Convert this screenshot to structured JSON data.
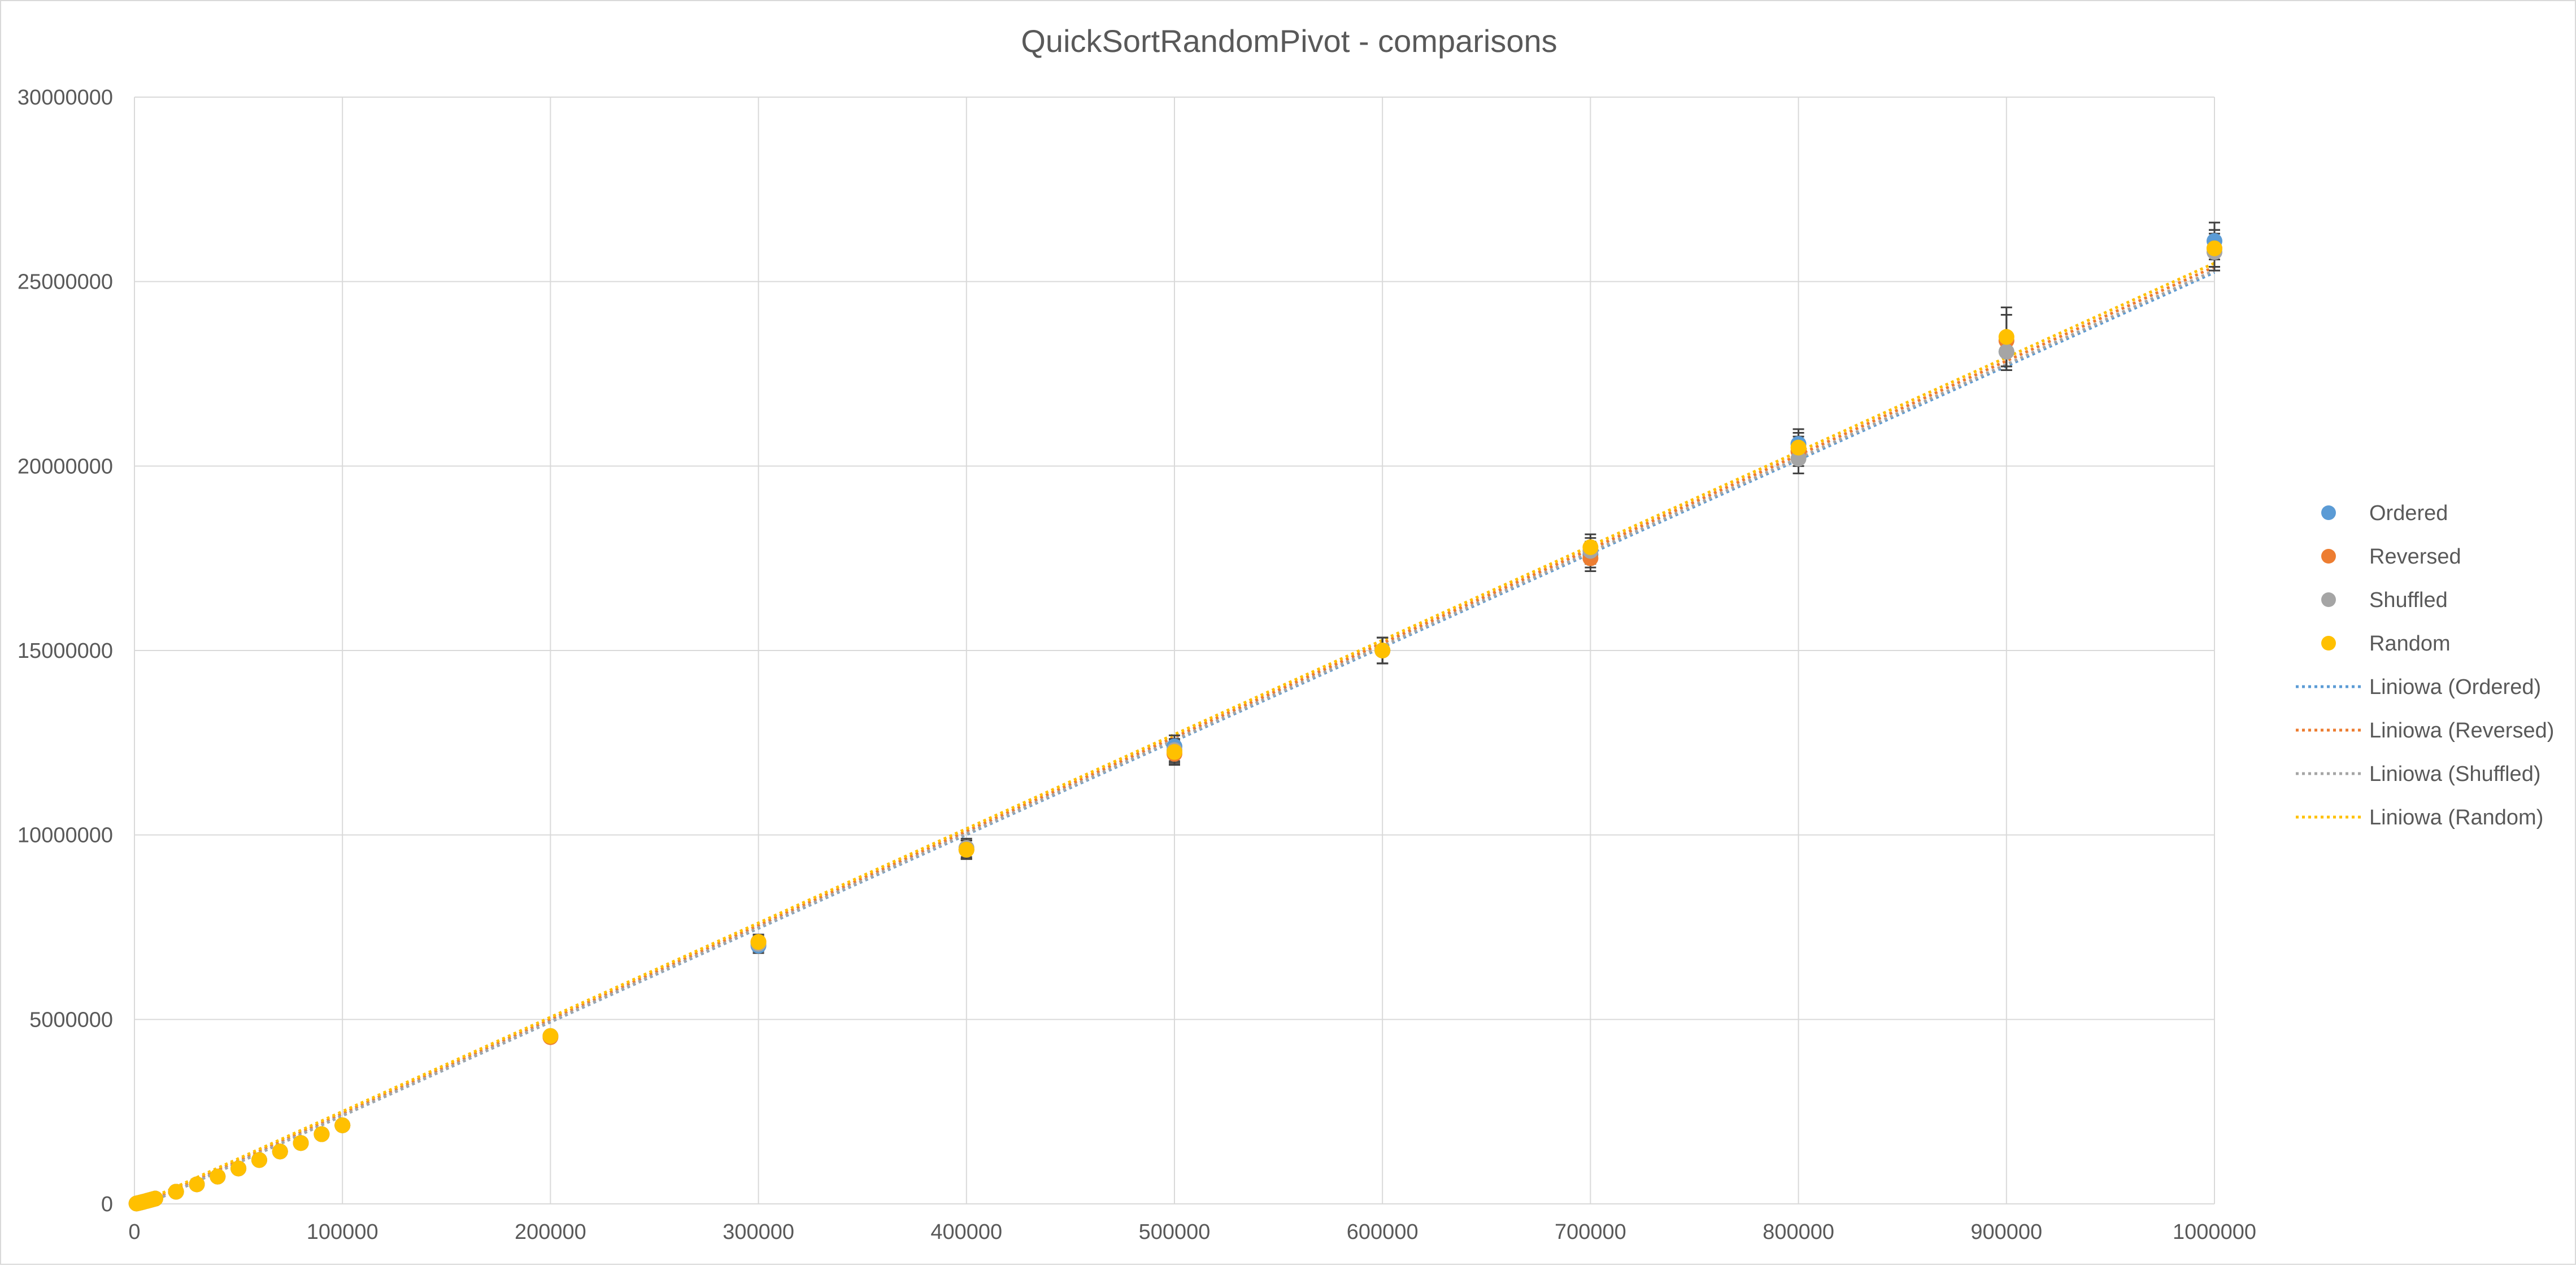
{
  "chart_data": {
    "type": "scatter",
    "title": "QuickSortRandomPivot - comparisons",
    "xlabel": "",
    "ylabel": "",
    "xlim": [
      0,
      1000000
    ],
    "ylim": [
      0,
      30000000
    ],
    "x_ticks": [
      0,
      100000,
      200000,
      300000,
      400000,
      500000,
      600000,
      700000,
      800000,
      900000,
      1000000
    ],
    "y_ticks": [
      0,
      5000000,
      10000000,
      15000000,
      20000000,
      25000000,
      30000000
    ],
    "grid": true,
    "legend_position": "right",
    "x": [
      1000,
      2000,
      3000,
      4000,
      5000,
      6000,
      7000,
      8000,
      9000,
      10000,
      20000,
      30000,
      40000,
      50000,
      60000,
      70000,
      80000,
      90000,
      100000,
      200000,
      300000,
      400000,
      500000,
      600000,
      700000,
      800000,
      900000,
      1000000
    ],
    "series": [
      {
        "name": "Ordered",
        "color": "#5B9BD5",
        "values": [
          11000,
          24000,
          38000,
          52000,
          67000,
          82000,
          97000,
          112000,
          128000,
          143000,
          330000,
          530000,
          740000,
          960000,
          1190000,
          1420000,
          1650000,
          1890000,
          2130000,
          4550000,
          7000000,
          9600000,
          12400000,
          15000000,
          17600000,
          20600000,
          23100000,
          26100000
        ],
        "error": [
          0,
          0,
          0,
          0,
          0,
          0,
          0,
          0,
          0,
          0,
          0,
          0,
          0,
          0,
          0,
          0,
          0,
          0,
          0,
          100000,
          200000,
          250000,
          300000,
          350000,
          350000,
          400000,
          500000,
          500000
        ]
      },
      {
        "name": "Reversed",
        "color": "#ED7D31",
        "values": [
          11000,
          24000,
          38000,
          52000,
          67000,
          82000,
          97000,
          112000,
          128000,
          143000,
          330000,
          530000,
          740000,
          960000,
          1190000,
          1420000,
          1650000,
          1890000,
          2130000,
          4520000,
          7100000,
          9600000,
          12200000,
          15000000,
          17500000,
          20400000,
          23400000,
          25900000
        ],
        "error": [
          0,
          0,
          0,
          0,
          0,
          0,
          0,
          0,
          0,
          0,
          0,
          0,
          0,
          0,
          0,
          0,
          0,
          0,
          0,
          100000,
          200000,
          250000,
          300000,
          350000,
          350000,
          400000,
          700000,
          500000
        ]
      },
      {
        "name": "Shuffled",
        "color": "#A5A5A5",
        "values": [
          11000,
          24000,
          38000,
          52000,
          67000,
          82000,
          97000,
          112000,
          128000,
          143000,
          330000,
          530000,
          740000,
          960000,
          1190000,
          1420000,
          1650000,
          1890000,
          2130000,
          4550000,
          7050000,
          9650000,
          12300000,
          15000000,
          17700000,
          20200000,
          23100000,
          25800000
        ],
        "error": [
          0,
          0,
          0,
          0,
          0,
          0,
          0,
          0,
          0,
          0,
          0,
          0,
          0,
          0,
          0,
          0,
          0,
          0,
          0,
          100000,
          200000,
          250000,
          300000,
          350000,
          350000,
          400000,
          500000,
          500000
        ]
      },
      {
        "name": "Random",
        "color": "#FFC000",
        "values": [
          11000,
          24000,
          38000,
          52000,
          67000,
          82000,
          97000,
          112000,
          128000,
          143000,
          330000,
          530000,
          740000,
          960000,
          1190000,
          1420000,
          1650000,
          1890000,
          2130000,
          4550000,
          7100000,
          9600000,
          12250000,
          15000000,
          17800000,
          20500000,
          23500000,
          25900000
        ],
        "error": [
          0,
          0,
          0,
          0,
          0,
          0,
          0,
          0,
          0,
          0,
          0,
          0,
          0,
          0,
          0,
          0,
          0,
          0,
          0,
          100000,
          200000,
          250000,
          300000,
          350000,
          350000,
          400000,
          800000,
          500000
        ]
      }
    ],
    "trendlines": [
      {
        "name": "Liniowa (Ordered)",
        "color": "#5B9BD5",
        "x": [
          0,
          1000000
        ],
        "y": [
          -150000,
          25250000
        ]
      },
      {
        "name": "Liniowa (Reversed)",
        "color": "#ED7D31",
        "x": [
          0,
          1000000
        ],
        "y": [
          -100000,
          25400000
        ]
      },
      {
        "name": "Liniowa (Shuffled)",
        "color": "#A5A5A5",
        "x": [
          0,
          1000000
        ],
        "y": [
          -150000,
          25300000
        ]
      },
      {
        "name": "Liniowa (Random)",
        "color": "#FFC000",
        "x": [
          0,
          1000000
        ],
        "y": [
          -50000,
          25500000
        ]
      }
    ]
  }
}
